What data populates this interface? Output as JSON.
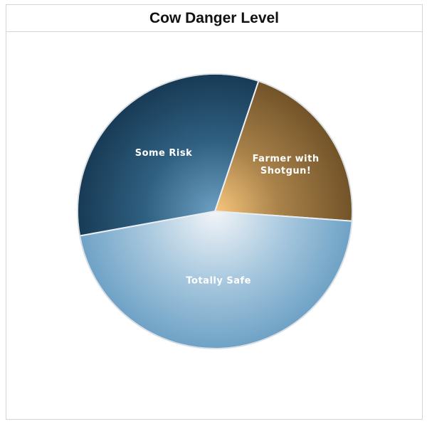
{
  "chart_data": {
    "type": "pie",
    "title": "Cow Danger Level",
    "slices": [
      {
        "label": "Farmer with Shotgun!",
        "value": 21,
        "color": "#8a6a3a",
        "lines": [
          "Farmer with",
          "Shotgun!"
        ]
      },
      {
        "label": "Totally Safe",
        "value": 46,
        "color": "#7aaed0",
        "lines": [
          "Totally Safe"
        ]
      },
      {
        "label": "Some Risk",
        "value": 33,
        "color": "#2a5878",
        "lines": [
          "Some Risk"
        ]
      }
    ],
    "legend": "none"
  }
}
